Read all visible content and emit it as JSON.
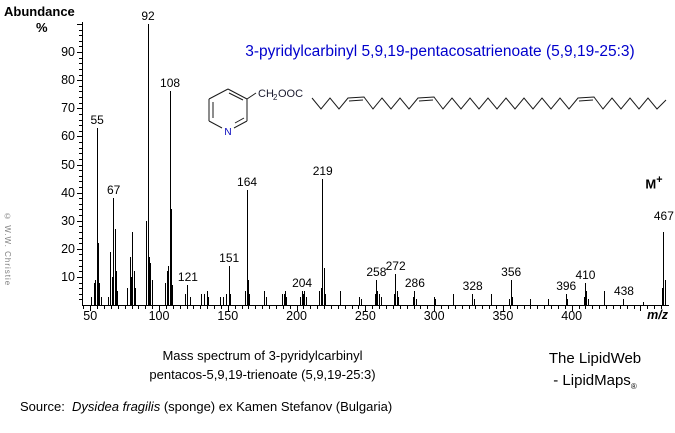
{
  "yaxis": {
    "title": "Abundance",
    "unit": "%",
    "ticks": [
      10,
      20,
      30,
      40,
      50,
      60,
      70,
      80,
      90
    ]
  },
  "xaxis": {
    "label": "m/z",
    "ticks": [
      50,
      100,
      150,
      200,
      250,
      300,
      350,
      400
    ]
  },
  "watermark": "© W.W. Christie",
  "compound_title": {
    "text": "3-pyridylcarbinyl 5,9,19-pentacosatrienoate (5,9,19-25:3)",
    "color": "#0000cc"
  },
  "structure": {
    "n_label": "N",
    "ester_ch": "CH",
    "ester_sub": "2",
    "ester_ooc": "OOC",
    "n_color": "#0000bb"
  },
  "annotations": {
    "mplus": {
      "base": "M",
      "sup": "+",
      "mz": 467
    }
  },
  "chart_data": {
    "type": "bar",
    "title": "Mass spectrum of 3-pyridylcarbinyl pentacos-5,9,19-trienoate (5,9,19-25:3)",
    "xlabel": "m/z",
    "ylabel": "Abundance %",
    "xlim": [
      44,
      470
    ],
    "ylim": [
      0,
      100
    ],
    "grid": false,
    "peaks": [
      {
        "mz": 51,
        "pct": 3
      },
      {
        "mz": 53,
        "pct": 8
      },
      {
        "mz": 54,
        "pct": 9
      },
      {
        "mz": 55,
        "pct": 63,
        "label": "55"
      },
      {
        "mz": 56,
        "pct": 22
      },
      {
        "mz": 57,
        "pct": 8
      },
      {
        "mz": 58,
        "pct": 3
      },
      {
        "mz": 63,
        "pct": 3
      },
      {
        "mz": 65,
        "pct": 19
      },
      {
        "mz": 66,
        "pct": 10
      },
      {
        "mz": 67,
        "pct": 38,
        "label": "67"
      },
      {
        "mz": 68,
        "pct": 27
      },
      {
        "mz": 69,
        "pct": 12
      },
      {
        "mz": 70,
        "pct": 5
      },
      {
        "mz": 77,
        "pct": 6
      },
      {
        "mz": 79,
        "pct": 17
      },
      {
        "mz": 80,
        "pct": 10
      },
      {
        "mz": 81,
        "pct": 26
      },
      {
        "mz": 82,
        "pct": 12
      },
      {
        "mz": 83,
        "pct": 6
      },
      {
        "mz": 91,
        "pct": 30
      },
      {
        "mz": 92,
        "pct": 100,
        "label": "92"
      },
      {
        "mz": 93,
        "pct": 17
      },
      {
        "mz": 94,
        "pct": 15
      },
      {
        "mz": 95,
        "pct": 9
      },
      {
        "mz": 105,
        "pct": 8
      },
      {
        "mz": 106,
        "pct": 12
      },
      {
        "mz": 107,
        "pct": 14
      },
      {
        "mz": 108,
        "pct": 76,
        "label": "108"
      },
      {
        "mz": 109,
        "pct": 34
      },
      {
        "mz": 110,
        "pct": 7
      },
      {
        "mz": 119,
        "pct": 4
      },
      {
        "mz": 121,
        "pct": 7,
        "label": "121"
      },
      {
        "mz": 123,
        "pct": 3
      },
      {
        "mz": 131,
        "pct": 4
      },
      {
        "mz": 133,
        "pct": 4
      },
      {
        "mz": 135,
        "pct": 5
      },
      {
        "mz": 136,
        "pct": 3
      },
      {
        "mz": 145,
        "pct": 3
      },
      {
        "mz": 147,
        "pct": 3
      },
      {
        "mz": 149,
        "pct": 4
      },
      {
        "mz": 151,
        "pct": 14,
        "label": "151"
      },
      {
        "mz": 152,
        "pct": 4
      },
      {
        "mz": 163,
        "pct": 5
      },
      {
        "mz": 164,
        "pct": 41,
        "label": "164"
      },
      {
        "mz": 165,
        "pct": 9
      },
      {
        "mz": 166,
        "pct": 4
      },
      {
        "mz": 177,
        "pct": 5
      },
      {
        "mz": 178,
        "pct": 3
      },
      {
        "mz": 190,
        "pct": 4
      },
      {
        "mz": 191,
        "pct": 4
      },
      {
        "mz": 192,
        "pct": 5
      },
      {
        "mz": 193,
        "pct": 3
      },
      {
        "mz": 203,
        "pct": 3
      },
      {
        "mz": 204,
        "pct": 5,
        "label": "204"
      },
      {
        "mz": 205,
        "pct": 4
      },
      {
        "mz": 206,
        "pct": 5
      },
      {
        "mz": 207,
        "pct": 3
      },
      {
        "mz": 217,
        "pct": 5
      },
      {
        "mz": 218,
        "pct": 6
      },
      {
        "mz": 219,
        "pct": 45,
        "label": "219"
      },
      {
        "mz": 220,
        "pct": 13
      },
      {
        "mz": 221,
        "pct": 4
      },
      {
        "mz": 232,
        "pct": 5
      },
      {
        "mz": 246,
        "pct": 3
      },
      {
        "mz": 247,
        "pct": 2
      },
      {
        "mz": 257,
        "pct": 4
      },
      {
        "mz": 258,
        "pct": 9,
        "label": "258"
      },
      {
        "mz": 259,
        "pct": 5
      },
      {
        "mz": 260,
        "pct": 4
      },
      {
        "mz": 262,
        "pct": 3
      },
      {
        "mz": 271,
        "pct": 4
      },
      {
        "mz": 272,
        "pct": 11,
        "label": "272"
      },
      {
        "mz": 273,
        "pct": 5
      },
      {
        "mz": 274,
        "pct": 3
      },
      {
        "mz": 285,
        "pct": 3
      },
      {
        "mz": 286,
        "pct": 5,
        "label": "286"
      },
      {
        "mz": 287,
        "pct": 2
      },
      {
        "mz": 300,
        "pct": 3
      },
      {
        "mz": 301,
        "pct": 2
      },
      {
        "mz": 314,
        "pct": 4
      },
      {
        "mz": 328,
        "pct": 4,
        "label": "328"
      },
      {
        "mz": 329,
        "pct": 2
      },
      {
        "mz": 342,
        "pct": 4
      },
      {
        "mz": 355,
        "pct": 2
      },
      {
        "mz": 356,
        "pct": 9,
        "label": "356"
      },
      {
        "mz": 357,
        "pct": 3
      },
      {
        "mz": 370,
        "pct": 2
      },
      {
        "mz": 383,
        "pct": 2
      },
      {
        "mz": 396,
        "pct": 4,
        "label": "396"
      },
      {
        "mz": 397,
        "pct": 2
      },
      {
        "mz": 409,
        "pct": 3
      },
      {
        "mz": 410,
        "pct": 8,
        "label": "410"
      },
      {
        "mz": 411,
        "pct": 5
      },
      {
        "mz": 412,
        "pct": 2
      },
      {
        "mz": 424,
        "pct": 5
      },
      {
        "mz": 438,
        "pct": 2,
        "label": "438"
      },
      {
        "mz": 452,
        "pct": 1
      },
      {
        "mz": 466,
        "pct": 6
      },
      {
        "mz": 467,
        "pct": 26,
        "label": "467",
        "dy": -8
      },
      {
        "mz": 468,
        "pct": 9
      }
    ]
  },
  "footer": {
    "caption_line1": "Mass spectrum of 3-pyridylcarbinyl",
    "caption_line2": "pentacos-5,9,19-trienoate (5,9,19-25:3)",
    "brand_line1": "The LipidWeb",
    "brand_line2": "- LipidMaps",
    "brand_reg": "®",
    "source_prefix": "Source:",
    "source_species": "Dysidea fragilis",
    "source_rest": " (sponge) ex Kamen Stefanov (Bulgaria)"
  }
}
